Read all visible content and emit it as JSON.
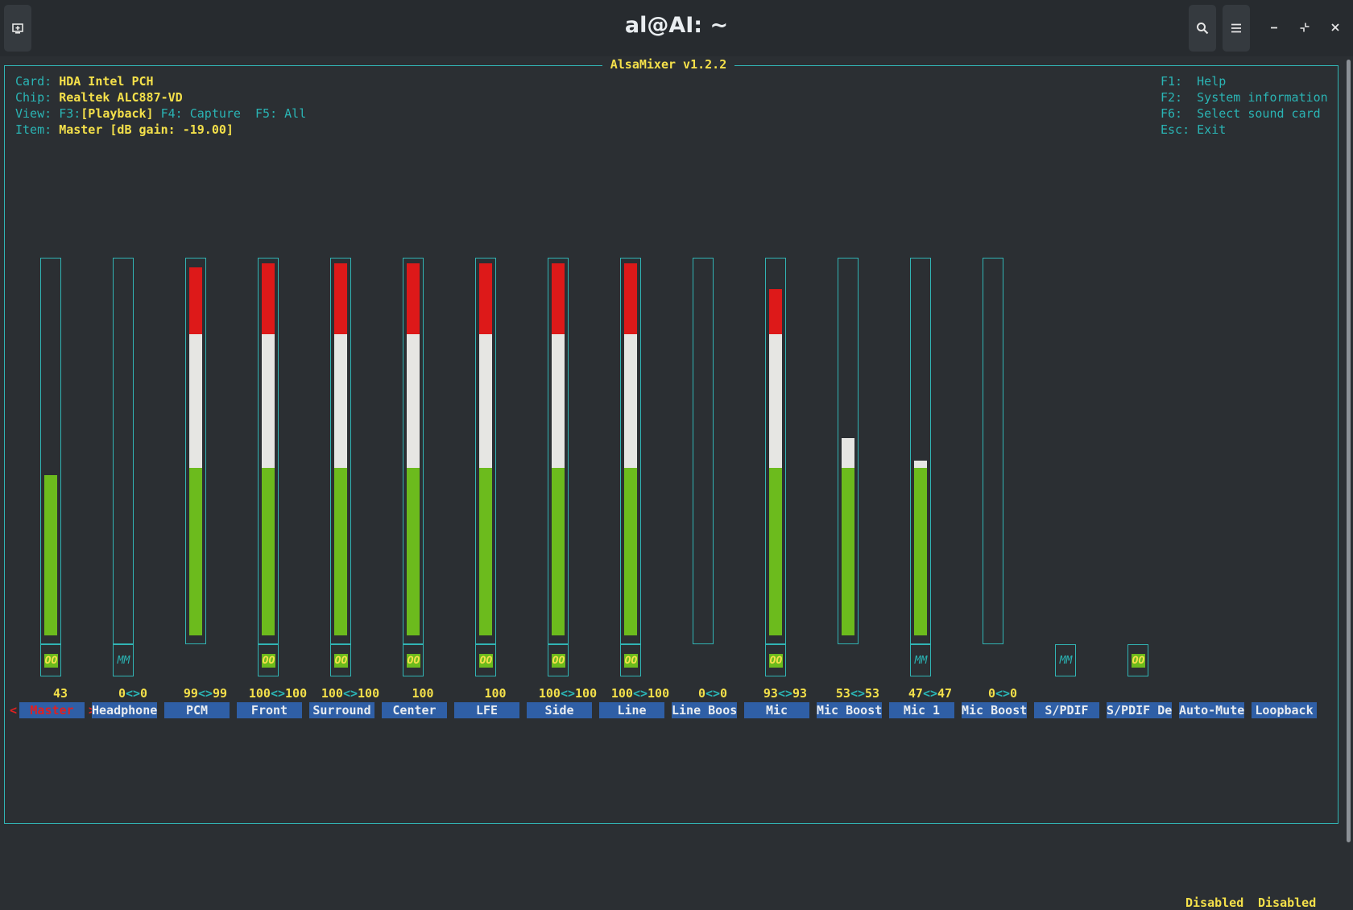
{
  "window": {
    "title": "al@AI: ~",
    "icons": [
      "new-tab-icon",
      "search-icon",
      "hamburger-menu-icon",
      "minimize-icon",
      "restore-icon",
      "close-icon"
    ]
  },
  "mixer": {
    "title": "AlsaMixer v1.2.2",
    "info": {
      "card_label": "Card:",
      "card_value": "HDA Intel PCH",
      "chip_label": "Chip:",
      "chip_value": "Realtek ALC887-VD",
      "view_label": "View:",
      "view_f3_key": "F3:",
      "view_f3_value": "[Playback]",
      "view_f4": "F4: Capture",
      "view_f5": "F5: All",
      "item_label": "Item:",
      "item_value": "Master [dB gain: -19.00]"
    },
    "help": [
      {
        "key": "F1:",
        "text": "Help"
      },
      {
        "key": "F2:",
        "text": "System information"
      },
      {
        "key": "F6:",
        "text": "Select sound card"
      },
      {
        "key": "Esc:",
        "text": "Exit"
      }
    ],
    "selection_markers": {
      "left": "<",
      "right": ">"
    },
    "channels": [
      {
        "name": "Master",
        "level_percent": 43,
        "mute": "OO",
        "volume_left": "43",
        "volume_sep": "",
        "volume_right": "",
        "has_gauge": true,
        "selected": true
      },
      {
        "name": "Headphone",
        "level_percent": 0,
        "mute": "MM",
        "volume_left": "0",
        "volume_sep": "<>",
        "volume_right": "0",
        "has_gauge": true
      },
      {
        "name": "PCM",
        "level_percent": 99,
        "mute": "",
        "volume_left": "99",
        "volume_sep": "<>",
        "volume_right": "99",
        "has_gauge": true
      },
      {
        "name": "Front",
        "level_percent": 100,
        "mute": "OO",
        "volume_left": "100",
        "volume_sep": "<>",
        "volume_right": "100",
        "has_gauge": true
      },
      {
        "name": "Surround",
        "level_percent": 100,
        "mute": "OO",
        "volume_left": "100",
        "volume_sep": "<>",
        "volume_right": "100",
        "has_gauge": true
      },
      {
        "name": "Center",
        "level_percent": 100,
        "mute": "OO",
        "volume_left": "100",
        "volume_sep": "",
        "volume_right": "",
        "has_gauge": true
      },
      {
        "name": "LFE",
        "level_percent": 100,
        "mute": "OO",
        "volume_left": "100",
        "volume_sep": "",
        "volume_right": "",
        "has_gauge": true
      },
      {
        "name": "Side",
        "level_percent": 100,
        "mute": "OO",
        "volume_left": "100",
        "volume_sep": "<>",
        "volume_right": "100",
        "has_gauge": true
      },
      {
        "name": "Line",
        "level_percent": 100,
        "mute": "OO",
        "volume_left": "100",
        "volume_sep": "<>",
        "volume_right": "100",
        "has_gauge": true
      },
      {
        "name": "Line Boos",
        "level_percent": 0,
        "mute": "",
        "volume_left": "0",
        "volume_sep": "<>",
        "volume_right": "0",
        "has_gauge": true
      },
      {
        "name": "Mic",
        "level_percent": 93,
        "mute": "OO",
        "volume_left": "93",
        "volume_sep": "<>",
        "volume_right": "93",
        "has_gauge": true
      },
      {
        "name": "Mic Boost",
        "level_percent": 53,
        "mute": "",
        "volume_left": "53",
        "volume_sep": "<>",
        "volume_right": "53",
        "has_gauge": true
      },
      {
        "name": "Mic 1",
        "level_percent": 47,
        "mute": "MM",
        "volume_left": "47",
        "volume_sep": "<>",
        "volume_right": "47",
        "has_gauge": true
      },
      {
        "name": "Mic Boost",
        "level_percent": 0,
        "mute": "",
        "volume_left": "0",
        "volume_sep": "<>",
        "volume_right": "0",
        "has_gauge": true
      },
      {
        "name": "S/PDIF",
        "level_percent": 0,
        "mute": "MM",
        "volume_left": "",
        "volume_sep": "",
        "volume_right": "",
        "has_gauge": false
      },
      {
        "name": "S/PDIF De",
        "level_percent": 0,
        "mute": "OO",
        "volume_left": "",
        "volume_sep": "",
        "volume_right": "",
        "has_gauge": false
      },
      {
        "name": "Auto-Mute",
        "level_percent": 0,
        "mute": "",
        "volume_left": "",
        "volume_sep": "",
        "volume_right": "",
        "has_gauge": false,
        "enum_value": "Disabled"
      },
      {
        "name": "Loopback",
        "level_percent": 0,
        "mute": "",
        "volume_left": "",
        "volume_sep": "",
        "volume_right": "",
        "has_gauge": false,
        "enum_value": "Disabled"
      }
    ]
  }
}
